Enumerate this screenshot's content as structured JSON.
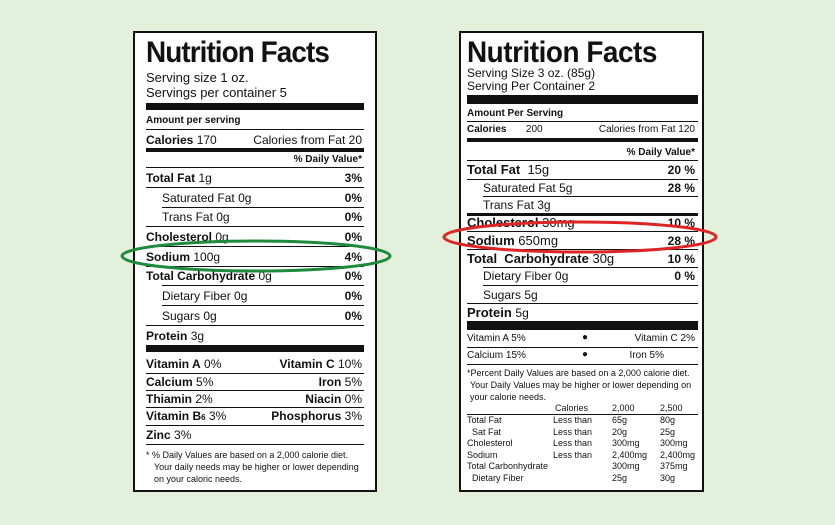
{
  "colors": {
    "background": "#e3f1dc",
    "label": "#ffffff",
    "ink": "#111111",
    "green_highlight": "#1e8a3c",
    "red_highlight": "#dd2525"
  },
  "label1": {
    "title": "Nutrition Facts",
    "serving_size": "Serving size 1 oz.",
    "servings": "Servings per container 5",
    "amount_per_serving": "Amount per serving",
    "calories_label": "Calories",
    "calories_value": "170",
    "calories_fat": "Calories from Fat 20",
    "dv_header": "% Daily Value*",
    "nutrients": [
      {
        "name": "Total Fat",
        "amount": "1g",
        "dv": "3%"
      },
      {
        "name": "Saturated Fat",
        "amount": "0g",
        "dv": "0%"
      },
      {
        "name": "Trans Fat",
        "amount": "0g",
        "dv": "0%"
      },
      {
        "name": "Cholesterol",
        "amount": "0g",
        "dv": "0%"
      },
      {
        "name": "Sodium",
        "amount": "100g",
        "dv": "4%"
      },
      {
        "name": "Total Carbohydrate",
        "amount": "0g",
        "dv": "0%"
      },
      {
        "name": "Dietary Fiber",
        "amount": "0g",
        "dv": "0%"
      },
      {
        "name": "Sugars",
        "amount": "0g",
        "dv": "0%"
      }
    ],
    "protein_label": "Protein",
    "protein_amount": "3g",
    "vitamins": [
      {
        "l_name": "Vitamin A",
        "l_val": "0%",
        "r_name": "Vitamin C",
        "r_val": "10%"
      },
      {
        "l_name": "Calcium",
        "l_val": "5%",
        "r_name": "Iron",
        "r_val": "5%"
      },
      {
        "l_name": "Thiamin",
        "l_val": "2%",
        "r_name": "Niacin",
        "r_val": "0%"
      },
      {
        "l_name": "Vitamin B",
        "l_sub": "6",
        "l_val": "3%",
        "r_name": "Phosphorus",
        "r_val": "3%"
      }
    ],
    "zinc_label": "Zinc",
    "zinc_val": "3%",
    "footnote": [
      "*  % Daily Values are based on a 2,000 calorie diet.",
      "Your daily needs may be higher or lower depending",
      "on your caloric needs."
    ]
  },
  "label2": {
    "title": "Nutrition Facts",
    "serving_size": "Serving Size 3 oz. (85g)",
    "servings": "Serving Per Container 2",
    "amount_per_serving": "Amount Per Serving",
    "calories_label": "Calories",
    "calories_value": "200",
    "calories_fat": "Calories from Fat 120",
    "dv_header": "% Daily Value*",
    "nutrients": [
      {
        "name": "Total Fat",
        "amount": "15g",
        "dv": "20 %"
      },
      {
        "name": "Saturated Fat",
        "amount": "5g",
        "dv": "28 %"
      },
      {
        "name": "Trans Fat",
        "amount": "3g",
        "dv": ""
      },
      {
        "name": "Cholesterol",
        "amount": "30mg",
        "dv": "10 %"
      },
      {
        "name": "Sodium",
        "amount": "650mg",
        "dv": "28 %"
      },
      {
        "name": "Total  Carbohydrate",
        "amount": "30g",
        "dv": "10 %"
      },
      {
        "name": "Dietary Fiber",
        "amount": "0g",
        "dv": "0 %"
      },
      {
        "name": "Sugars",
        "amount": "5g",
        "dv": ""
      }
    ],
    "protein_label": "Protein",
    "protein_amount": "5g",
    "vitamins": [
      {
        "l": "Vitamin A 5%",
        "r": "Vitamin C 2%"
      },
      {
        "l": "Calcium 15%",
        "r": "Iron 5%"
      }
    ],
    "footnote": [
      "*Percent Daily Values are based on a 2,000 calorie diet.",
      "Your Daily Values may be higher or lower depending  on",
      "your calorie needs."
    ],
    "table_header": {
      "calories": "Calories",
      "c2000": "2,000",
      "c2500": "2,500"
    },
    "table_rows": [
      {
        "name": "Total Fat",
        "cond": "Less than",
        "a": "65g",
        "b": "80g"
      },
      {
        "name": "Sat Fat",
        "cond": "Less than",
        "a": "20g",
        "b": "25g"
      },
      {
        "name": "Cholesterol",
        "cond": "Less than",
        "a": "300mg",
        "b": "300mg"
      },
      {
        "name": "Sodium",
        "cond": "Less than",
        "a": "2,400mg",
        "b": "2,400mg"
      },
      {
        "name": "Total Carbonhydrate",
        "cond": "",
        "a": "300mg",
        "b": "375mg"
      },
      {
        "name": "Dietary Fiber",
        "cond": "",
        "a": "25g",
        "b": "30g"
      }
    ]
  }
}
